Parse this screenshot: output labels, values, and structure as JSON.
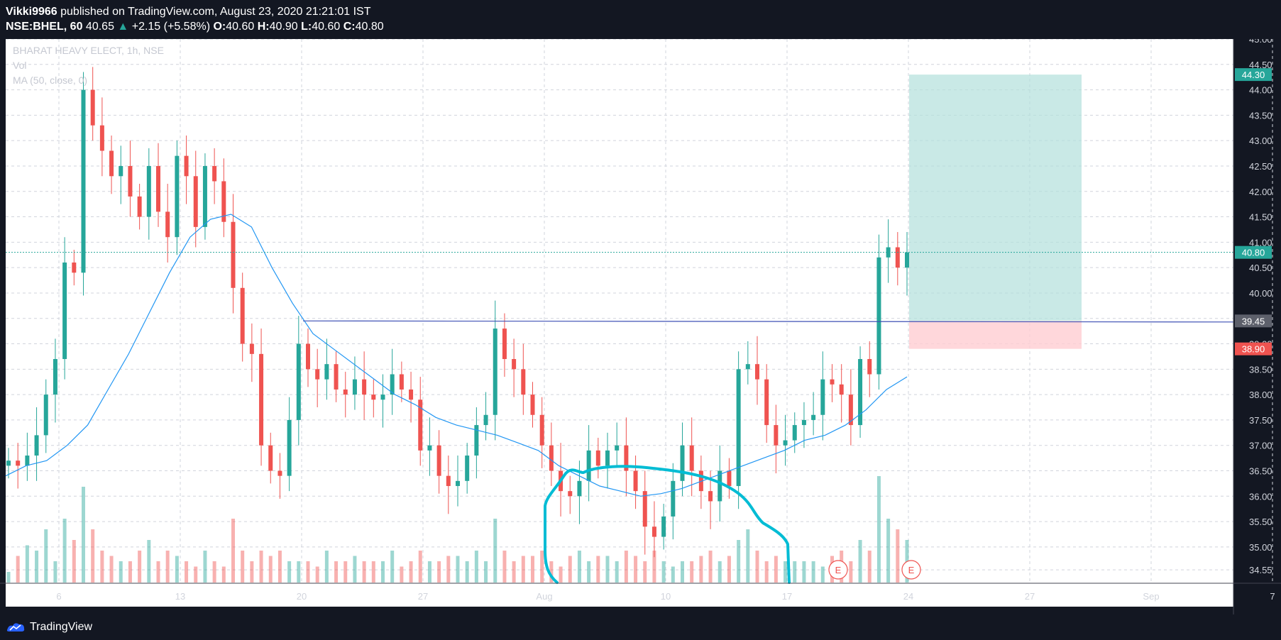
{
  "header": {
    "publisher": "Vikki9966",
    "published_text": " published on TradingView.com, August 23, 2020 21:21:01 IST",
    "symbol": "NSE:BHEL, 60",
    "last": "40.65",
    "change": "+2.15 (+5.58%)",
    "o_label": "O:",
    "o": "40.60",
    "h_label": "H:",
    "h": "40.90",
    "l_label": "L:",
    "l": "40.60",
    "c_label": "C:",
    "c": "40.80"
  },
  "legend": {
    "name": "BHARAT HEAVY ELECT, 1h, NSE",
    "vol": "Vol",
    "ma": "MA (50, close, 0)"
  },
  "footer": {
    "brand": "TradingView"
  },
  "colors": {
    "bg": "#ffffff",
    "up": "#26a69a",
    "down": "#ef5350",
    "ma": "#2196f3",
    "hline": "#3f51b5",
    "drawing": "#00bcd4",
    "target_zone": "#b2dfdb",
    "stop_zone": "#ffcdd2"
  },
  "chart_data": {
    "type": "candlestick",
    "ylim": [
      34.3,
      45.0
    ],
    "y_ticks": [
      "34.55",
      "35.00",
      "35.50",
      "36.00",
      "36.50",
      "37.00",
      "37.50",
      "38.00",
      "38.50",
      "39.00",
      "39.50",
      "40.00",
      "40.50",
      "41.00",
      "41.50",
      "42.00",
      "42.50",
      "43.00",
      "43.50",
      "44.00",
      "44.50",
      "45.00"
    ],
    "x_ticks": [
      "6",
      "13",
      "20",
      "27",
      "Aug",
      "10",
      "17",
      "24",
      "27",
      "Sep",
      "7"
    ],
    "price_labels": [
      {
        "value": 44.3,
        "text": "44.30",
        "color": "#26a69a"
      },
      {
        "value": 40.8,
        "text": "40.80",
        "color": "#26a69a"
      },
      {
        "value": 39.45,
        "text": "39.45",
        "color": "#5d606b"
      },
      {
        "value": 38.9,
        "text": "38.90",
        "color": "#ef5350"
      }
    ],
    "horizontal_line": 39.45,
    "position": {
      "entry": 39.45,
      "target": 44.3,
      "stop": 38.9
    },
    "events": [
      "E",
      "E"
    ],
    "close_path": [
      36.7,
      36.6,
      36.8,
      37.2,
      38.0,
      38.7,
      40.6,
      40.4,
      44.0,
      43.3,
      42.8,
      42.3,
      42.5,
      41.9,
      41.5,
      42.5,
      41.6,
      41.1,
      42.7,
      42.3,
      41.3,
      42.5,
      42.2,
      41.4,
      40.1,
      39.0,
      38.8,
      37.0,
      36.5,
      36.4,
      37.5,
      39.0,
      38.5,
      38.3,
      38.6,
      38.1,
      38.0,
      38.3,
      38.0,
      37.9,
      38.0,
      38.4,
      38.1,
      37.9,
      36.9,
      37.0,
      36.4,
      36.2,
      36.3,
      36.8,
      37.4,
      37.6,
      39.3,
      38.7,
      38.5,
      38.0,
      37.6,
      37.0,
      36.5,
      36.1,
      36.0,
      36.3,
      36.9,
      36.6,
      36.9,
      37.0,
      36.5,
      36.1,
      35.4,
      35.2,
      35.6,
      36.3,
      37.0,
      36.5,
      36.1,
      35.9,
      36.5,
      36.2,
      38.5,
      38.6,
      38.3,
      37.4,
      37.0,
      37.1,
      37.4,
      37.5,
      37.6,
      38.3,
      38.2,
      38.0,
      37.4,
      38.7,
      38.4,
      40.7,
      40.9,
      40.5,
      40.8
    ],
    "ma_path": [
      36.4,
      36.6,
      36.7,
      37.0,
      37.4,
      38.1,
      38.8,
      39.6,
      40.4,
      41.1,
      41.45,
      41.55,
      41.3,
      40.5,
      39.8,
      39.2,
      38.9,
      38.6,
      38.3,
      38.0,
      37.8,
      37.55,
      37.4,
      37.3,
      37.2,
      37.05,
      36.9,
      36.6,
      36.4,
      36.2,
      36.1,
      36.0,
      36.05,
      36.15,
      36.3,
      36.45,
      36.6,
      36.75,
      36.9,
      37.1,
      37.2,
      37.4,
      37.7,
      38.1,
      38.35
    ],
    "volume_rel": [
      0.1,
      0.25,
      0.35,
      0.3,
      0.5,
      0.2,
      0.6,
      0.4,
      0.9,
      0.5,
      0.3,
      0.25,
      0.2,
      0.2,
      0.3,
      0.4,
      0.2,
      0.3,
      0.25,
      0.2,
      0.15,
      0.3,
      0.2,
      0.15,
      0.6,
      0.3,
      0.2,
      0.3,
      0.25,
      0.3,
      0.2,
      0.2,
      0.2,
      0.15,
      0.3,
      0.2,
      0.2,
      0.25,
      0.2,
      0.2,
      0.2,
      0.3,
      0.15,
      0.2,
      0.3,
      0.2,
      0.2,
      0.25,
      0.25,
      0.2,
      0.3,
      0.2,
      0.6,
      0.3,
      0.2,
      0.25,
      0.25,
      0.3,
      0.2,
      0.15,
      0.25,
      0.3,
      0.2,
      0.25,
      0.25,
      0.2,
      0.3,
      0.25,
      0.2,
      0.3,
      0.2,
      0.15,
      0.2,
      0.2,
      0.25,
      0.3,
      0.2,
      0.25,
      0.4,
      0.5,
      0.3,
      0.2,
      0.25,
      0.2,
      0.2,
      0.2,
      0.2,
      0.15,
      0.25,
      0.3,
      0.2,
      0.4,
      0.3,
      1.0,
      0.6,
      0.5,
      0.4
    ]
  }
}
